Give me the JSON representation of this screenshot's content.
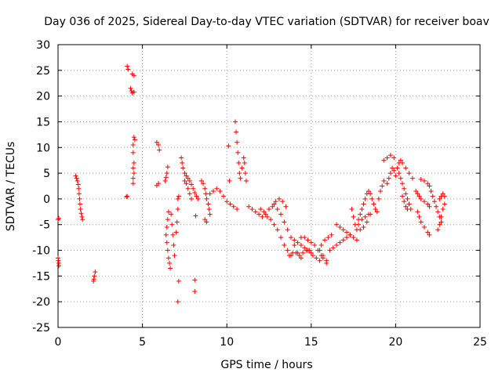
{
  "chart_data": {
    "type": "scatter",
    "title": "Day 036 of 2025, Sidereal Day-to-day VTEC variation (SDTVAR) for receiver boav",
    "xlabel": "GPS time / hours",
    "ylabel": "SDTVAR / TECUs",
    "xlim": [
      0,
      25
    ],
    "ylim": [
      -25,
      30
    ],
    "xticks": [
      0,
      5,
      10,
      15,
      20,
      25
    ],
    "yticks": [
      -25,
      -20,
      -15,
      -10,
      -5,
      0,
      5,
      10,
      15,
      20,
      25,
      30
    ],
    "grid": true,
    "marker": "+",
    "marker_color": "#ff0000",
    "series": [
      {
        "name": "SDTVAR",
        "points": [
          [
            0.0,
            -4.0
          ],
          [
            0.05,
            -3.8
          ],
          [
            0.0,
            -11.5
          ],
          [
            0.02,
            -12.0
          ],
          [
            0.05,
            -12.5
          ],
          [
            0.05,
            -13.0
          ],
          [
            1.05,
            4.5
          ],
          [
            1.1,
            4.0
          ],
          [
            1.15,
            3.5
          ],
          [
            1.2,
            2.8
          ],
          [
            1.22,
            2.0
          ],
          [
            1.25,
            1.0
          ],
          [
            1.28,
            0.0
          ],
          [
            1.3,
            -1.0
          ],
          [
            1.33,
            -2.0
          ],
          [
            1.37,
            -2.8
          ],
          [
            1.42,
            -3.5
          ],
          [
            1.45,
            -4.0
          ],
          [
            2.2,
            -14.2
          ],
          [
            2.15,
            -15.0
          ],
          [
            2.12,
            -15.6
          ],
          [
            2.1,
            -16.0
          ],
          [
            4.05,
            0.4
          ],
          [
            4.1,
            0.5
          ],
          [
            4.1,
            25.8
          ],
          [
            4.15,
            25.2
          ],
          [
            4.4,
            24.3
          ],
          [
            4.5,
            24.0
          ],
          [
            4.3,
            21.5
          ],
          [
            4.35,
            21.0
          ],
          [
            4.4,
            20.6
          ],
          [
            4.5,
            20.8
          ],
          [
            4.5,
            12.0
          ],
          [
            4.55,
            11.5
          ],
          [
            4.45,
            10.5
          ],
          [
            4.45,
            9.0
          ],
          [
            4.5,
            7.0
          ],
          [
            4.45,
            6.0
          ],
          [
            4.5,
            5.0
          ],
          [
            4.45,
            4.0
          ],
          [
            4.45,
            3.0
          ],
          [
            5.85,
            11.0
          ],
          [
            5.95,
            10.5
          ],
          [
            6.0,
            9.5
          ],
          [
            5.95,
            3.0
          ],
          [
            5.85,
            2.6
          ],
          [
            6.5,
            6.2
          ],
          [
            6.45,
            5.0
          ],
          [
            6.4,
            4.2
          ],
          [
            6.35,
            3.5
          ],
          [
            6.55,
            -2.5
          ],
          [
            6.5,
            -4.0
          ],
          [
            6.45,
            -5.5
          ],
          [
            6.4,
            -7.0
          ],
          [
            6.45,
            -8.5
          ],
          [
            6.5,
            -10.0
          ],
          [
            6.55,
            -11.5
          ],
          [
            6.6,
            -12.5
          ],
          [
            6.65,
            -13.5
          ],
          [
            6.7,
            -3.0
          ],
          [
            6.75,
            -5.0
          ],
          [
            6.8,
            -7.0
          ],
          [
            6.85,
            -9.0
          ],
          [
            6.9,
            -11.0
          ],
          [
            7.0,
            -6.5
          ],
          [
            7.05,
            -4.5
          ],
          [
            7.1,
            -2.0
          ],
          [
            7.1,
            0.0
          ],
          [
            7.15,
            0.5
          ],
          [
            7.15,
            -16.0
          ],
          [
            7.1,
            -20.0
          ],
          [
            8.1,
            -15.8
          ],
          [
            8.1,
            -18.0
          ],
          [
            8.15,
            -3.3
          ],
          [
            7.3,
            8.0
          ],
          [
            7.35,
            7.0
          ],
          [
            7.4,
            6.0
          ],
          [
            7.5,
            5.0
          ],
          [
            7.6,
            4.5
          ],
          [
            7.7,
            4.0
          ],
          [
            7.8,
            3.5
          ],
          [
            7.9,
            2.8
          ],
          [
            8.0,
            2.0
          ],
          [
            8.1,
            1.2
          ],
          [
            8.2,
            0.5
          ],
          [
            8.3,
            0.0
          ],
          [
            7.5,
            3.5
          ],
          [
            7.6,
            3.0
          ],
          [
            7.7,
            2.0
          ],
          [
            7.8,
            1.0
          ],
          [
            7.9,
            0.0
          ],
          [
            8.5,
            3.5
          ],
          [
            8.6,
            3.0
          ],
          [
            8.7,
            2.0
          ],
          [
            8.75,
            1.0
          ],
          [
            8.8,
            0.0
          ],
          [
            8.9,
            -1.0
          ],
          [
            8.95,
            -2.0
          ],
          [
            9.0,
            -3.0
          ],
          [
            8.7,
            -4.0
          ],
          [
            8.8,
            -4.5
          ],
          [
            9.0,
            1.0
          ],
          [
            9.2,
            1.5
          ],
          [
            9.4,
            2.0
          ],
          [
            9.6,
            1.5
          ],
          [
            9.8,
            0.5
          ],
          [
            10.0,
            -0.5
          ],
          [
            10.2,
            -1.0
          ],
          [
            10.4,
            -1.5
          ],
          [
            10.6,
            -2.0
          ],
          [
            10.1,
            10.3
          ],
          [
            10.15,
            3.5
          ],
          [
            10.5,
            15.0
          ],
          [
            10.55,
            13.0
          ],
          [
            10.6,
            11.0
          ],
          [
            10.65,
            9.0
          ],
          [
            10.7,
            7.0
          ],
          [
            10.75,
            5.0
          ],
          [
            10.8,
            4.0
          ],
          [
            10.9,
            6.0
          ],
          [
            11.0,
            8.0
          ],
          [
            11.05,
            7.0
          ],
          [
            11.1,
            5.0
          ],
          [
            11.15,
            3.5
          ],
          [
            11.3,
            -1.5
          ],
          [
            11.5,
            -2.0
          ],
          [
            11.7,
            -2.5
          ],
          [
            11.9,
            -3.0
          ],
          [
            12.1,
            -3.5
          ],
          [
            12.3,
            -3.0
          ],
          [
            12.5,
            -2.0
          ],
          [
            12.7,
            -1.5
          ],
          [
            12.9,
            -0.5
          ],
          [
            13.1,
            0.0
          ],
          [
            13.3,
            -0.5
          ],
          [
            13.5,
            -1.5
          ],
          [
            12.0,
            -2.0
          ],
          [
            12.2,
            -2.5
          ],
          [
            12.4,
            -3.5
          ],
          [
            12.6,
            -4.0
          ],
          [
            12.8,
            -5.0
          ],
          [
            13.0,
            -6.0
          ],
          [
            13.2,
            -7.5
          ],
          [
            13.4,
            -9.0
          ],
          [
            13.6,
            -10.0
          ],
          [
            13.8,
            -11.0
          ],
          [
            12.8,
            -1.0
          ],
          [
            13.0,
            -2.0
          ],
          [
            13.2,
            -3.0
          ],
          [
            13.4,
            -4.5
          ],
          [
            13.6,
            -6.0
          ],
          [
            13.8,
            -7.5
          ],
          [
            14.0,
            -9.0
          ],
          [
            14.2,
            -10.5
          ],
          [
            14.4,
            -11.5
          ],
          [
            13.7,
            -11.0
          ],
          [
            13.9,
            -10.5
          ],
          [
            14.1,
            -10.5
          ],
          [
            14.3,
            -11.0
          ],
          [
            14.5,
            -10.5
          ],
          [
            14.7,
            -10.0
          ],
          [
            14.9,
            -10.0
          ],
          [
            15.1,
            -11.0
          ],
          [
            15.3,
            -11.5
          ],
          [
            15.5,
            -12.0
          ],
          [
            15.7,
            -11.5
          ],
          [
            15.9,
            -12.5
          ],
          [
            14.0,
            -8.0
          ],
          [
            14.2,
            -8.5
          ],
          [
            14.4,
            -9.0
          ],
          [
            14.6,
            -9.5
          ],
          [
            14.8,
            -10.0
          ],
          [
            15.0,
            -10.5
          ],
          [
            14.4,
            -7.5
          ],
          [
            14.6,
            -7.5
          ],
          [
            14.8,
            -8.0
          ],
          [
            15.0,
            -8.5
          ],
          [
            15.2,
            -9.0
          ],
          [
            15.4,
            -10.0
          ],
          [
            15.6,
            -11.0
          ],
          [
            15.5,
            -10.0
          ],
          [
            15.6,
            -9.0
          ],
          [
            15.8,
            -8.0
          ],
          [
            16.0,
            -7.5
          ],
          [
            16.2,
            -7.0
          ],
          [
            15.7,
            -11.0
          ],
          [
            15.9,
            -12.0
          ],
          [
            16.1,
            -10.0
          ],
          [
            16.3,
            -9.5
          ],
          [
            16.5,
            -9.0
          ],
          [
            16.7,
            -8.5
          ],
          [
            16.9,
            -8.0
          ],
          [
            17.1,
            -7.5
          ],
          [
            17.3,
            -7.0
          ],
          [
            16.5,
            -5.0
          ],
          [
            16.7,
            -5.5
          ],
          [
            16.9,
            -6.0
          ],
          [
            17.1,
            -6.5
          ],
          [
            17.3,
            -7.0
          ],
          [
            17.5,
            -7.5
          ],
          [
            17.7,
            -8.0
          ],
          [
            17.4,
            -2.0
          ],
          [
            17.5,
            -3.5
          ],
          [
            17.6,
            -5.0
          ],
          [
            17.7,
            -6.0
          ],
          [
            17.8,
            -4.0
          ],
          [
            17.9,
            -3.0
          ],
          [
            18.0,
            -2.0
          ],
          [
            18.1,
            -1.0
          ],
          [
            18.2,
            0.0
          ],
          [
            18.3,
            1.0
          ],
          [
            18.4,
            1.5
          ],
          [
            18.5,
            1.0
          ],
          [
            18.6,
            0.0
          ],
          [
            18.7,
            -1.0
          ],
          [
            18.8,
            -2.0
          ],
          [
            18.9,
            -2.5
          ],
          [
            18.5,
            -3.0
          ],
          [
            18.3,
            -4.5
          ],
          [
            18.1,
            -5.5
          ],
          [
            17.9,
            -6.0
          ],
          [
            17.8,
            -5.0
          ],
          [
            18.0,
            -4.0
          ],
          [
            18.2,
            -3.5
          ],
          [
            18.4,
            -3.0
          ],
          [
            19.0,
            0.0
          ],
          [
            19.1,
            1.5
          ],
          [
            19.2,
            2.5
          ],
          [
            19.3,
            3.5
          ],
          [
            19.3,
            7.5
          ],
          [
            19.5,
            8.0
          ],
          [
            19.7,
            8.5
          ],
          [
            19.9,
            8.0
          ],
          [
            19.5,
            3.0
          ],
          [
            19.6,
            4.0
          ],
          [
            19.7,
            5.0
          ],
          [
            19.8,
            6.0
          ],
          [
            19.9,
            5.5
          ],
          [
            20.0,
            4.5
          ],
          [
            20.1,
            6.0
          ],
          [
            20.2,
            7.0
          ],
          [
            20.3,
            7.5
          ],
          [
            20.4,
            7.0
          ],
          [
            20.6,
            6.0
          ],
          [
            20.8,
            5.0
          ],
          [
            21.0,
            4.0
          ],
          [
            20.2,
            5.0
          ],
          [
            20.3,
            4.0
          ],
          [
            20.4,
            3.0
          ],
          [
            20.5,
            2.0
          ],
          [
            20.6,
            1.0
          ],
          [
            20.7,
            0.0
          ],
          [
            20.8,
            -1.0
          ],
          [
            20.9,
            -2.0
          ],
          [
            20.4,
            0.5
          ],
          [
            20.5,
            -0.5
          ],
          [
            20.6,
            -1.5
          ],
          [
            20.7,
            -2.0
          ],
          [
            20.8,
            -1.0
          ],
          [
            21.2,
            1.5
          ],
          [
            21.3,
            1.0
          ],
          [
            21.4,
            0.5
          ],
          [
            21.5,
            0.0
          ],
          [
            21.7,
            -0.5
          ],
          [
            21.9,
            -1.0
          ],
          [
            22.0,
            -1.5
          ],
          [
            21.5,
            3.8
          ],
          [
            21.7,
            3.5
          ],
          [
            21.9,
            3.0
          ],
          [
            22.0,
            2.5
          ],
          [
            22.1,
            1.5
          ],
          [
            22.2,
            0.5
          ],
          [
            22.3,
            -0.5
          ],
          [
            22.4,
            -1.5
          ],
          [
            22.5,
            -2.5
          ],
          [
            22.6,
            -3.5
          ],
          [
            22.7,
            -4.5
          ],
          [
            21.3,
            -2.5
          ],
          [
            21.4,
            -3.5
          ],
          [
            21.5,
            -4.5
          ],
          [
            21.7,
            -5.5
          ],
          [
            21.9,
            -6.5
          ],
          [
            22.0,
            -7.0
          ],
          [
            22.6,
            0.0
          ],
          [
            22.7,
            0.5
          ],
          [
            22.8,
            1.0
          ],
          [
            22.9,
            0.5
          ],
          [
            22.9,
            -1.0
          ],
          [
            22.8,
            -2.0
          ],
          [
            22.7,
            -3.5
          ],
          [
            22.6,
            -5.0
          ],
          [
            22.5,
            -6.0
          ]
        ]
      }
    ]
  }
}
